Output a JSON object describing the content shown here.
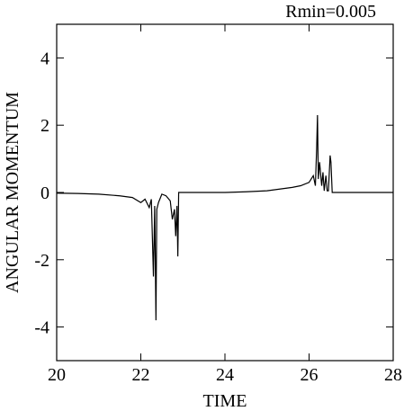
{
  "chart_data": {
    "type": "line",
    "title": "Rmin=0.005",
    "xlabel": "TIME",
    "ylabel": "ANGULAR MOMENTUM",
    "x": [
      20,
      20.5,
      21,
      21.5,
      21.8,
      22,
      22.1,
      22.2,
      22.25,
      22.3,
      22.33,
      22.36,
      22.38,
      22.42,
      22.5,
      22.6,
      22.7,
      22.75,
      22.8,
      22.83,
      22.86,
      22.88,
      22.9,
      23.5,
      24,
      24.5,
      25,
      25.3,
      25.6,
      25.8,
      26,
      26.1,
      26.15,
      26.18,
      26.2,
      26.22,
      26.25,
      26.3,
      26.33,
      26.36,
      26.4,
      26.43,
      26.46,
      26.5,
      26.52,
      26.55,
      26.58,
      27,
      28
    ],
    "values": [
      -0.02,
      -0.03,
      -0.05,
      -0.1,
      -0.15,
      -0.3,
      -0.2,
      -0.45,
      -0.2,
      -2.5,
      -0.4,
      -3.8,
      -0.5,
      -0.3,
      -0.05,
      -0.1,
      -0.25,
      -0.8,
      -0.5,
      -1.3,
      -0.4,
      -1.9,
      0,
      0,
      0,
      0.02,
      0.05,
      0.1,
      0.15,
      0.2,
      0.3,
      0.5,
      0.2,
      1.3,
      2.3,
      0.4,
      0.9,
      0.2,
      0.6,
      0.05,
      0.5,
      0.05,
      0.05,
      1.1,
      0.9,
      0,
      0,
      0,
      0
    ],
    "color": "#000000",
    "xlim": [
      20,
      28
    ],
    "xticks": [
      20,
      22,
      24,
      26,
      28
    ],
    "ylim": [
      -5,
      5
    ],
    "yticks": [
      -4,
      -2,
      0,
      2,
      4
    ]
  }
}
